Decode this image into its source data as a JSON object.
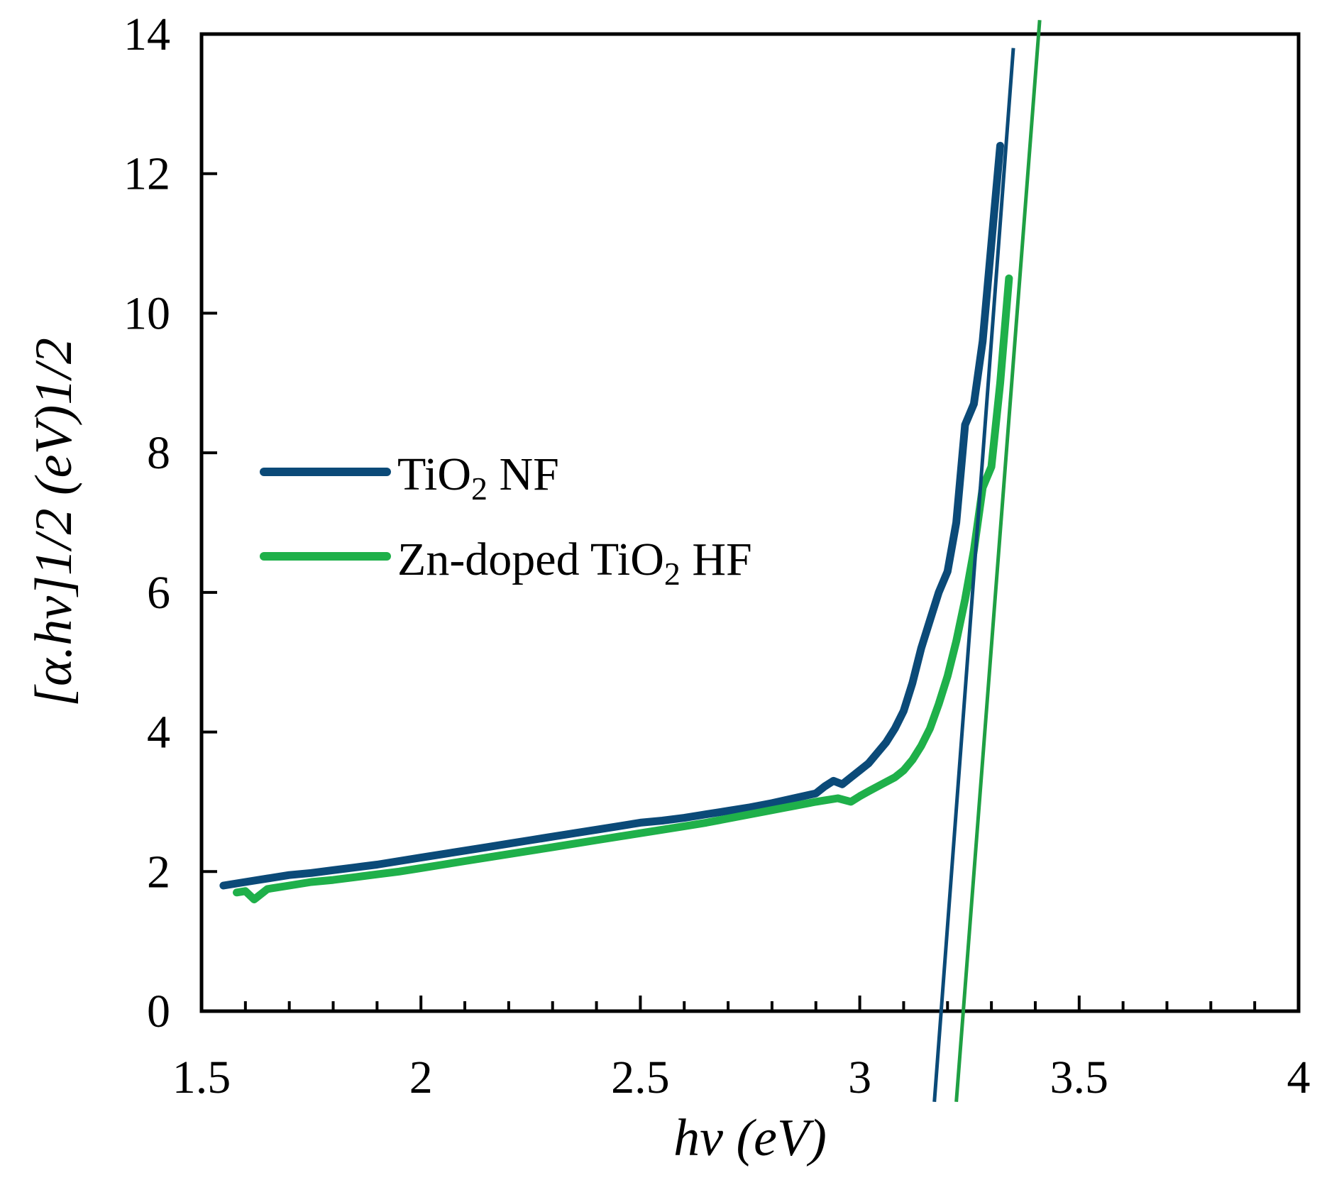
{
  "chart_data": {
    "type": "line",
    "title": "",
    "xlabel": "hv (eV)",
    "ylabel": "[α.hv]1/2 (eV)1/2",
    "xlim": [
      1.5,
      4
    ],
    "ylim": [
      0,
      14
    ],
    "x_ticks": [
      "1.5",
      "2",
      "2.5",
      "3",
      "3.5",
      "4"
    ],
    "y_ticks": [
      "0",
      "2",
      "4",
      "6",
      "8",
      "10",
      "12",
      "14"
    ],
    "grid": false,
    "legend_position": "center-left",
    "series": [
      {
        "name": "TiO2 NF",
        "label_main": "TiO",
        "label_sub": "2",
        "label_tail": " NF",
        "color": "#0b4a78",
        "x": [
          1.55,
          1.6,
          1.65,
          1.7,
          1.75,
          1.8,
          1.85,
          1.9,
          1.95,
          2.0,
          2.05,
          2.1,
          2.15,
          2.2,
          2.25,
          2.3,
          2.35,
          2.4,
          2.45,
          2.5,
          2.55,
          2.6,
          2.65,
          2.7,
          2.75,
          2.8,
          2.85,
          2.9,
          2.92,
          2.94,
          2.96,
          2.98,
          3.0,
          3.02,
          3.04,
          3.06,
          3.08,
          3.1,
          3.12,
          3.14,
          3.16,
          3.18,
          3.2,
          3.22,
          3.24,
          3.26,
          3.28,
          3.3,
          3.32
        ],
        "y": [
          1.8,
          1.85,
          1.9,
          1.95,
          1.98,
          2.02,
          2.06,
          2.1,
          2.15,
          2.2,
          2.25,
          2.3,
          2.35,
          2.4,
          2.45,
          2.5,
          2.55,
          2.6,
          2.65,
          2.7,
          2.73,
          2.77,
          2.82,
          2.87,
          2.92,
          2.98,
          3.05,
          3.12,
          3.22,
          3.3,
          3.25,
          3.35,
          3.45,
          3.55,
          3.7,
          3.85,
          4.05,
          4.3,
          4.7,
          5.2,
          5.6,
          6.0,
          6.3,
          7.0,
          8.4,
          8.7,
          9.6,
          11.0,
          12.4
        ]
      },
      {
        "name": "Zn-doped TiO2 HF",
        "label_main": "Zn-doped TiO",
        "label_sub": "2",
        "label_tail": " HF",
        "color": "#1fb04a",
        "x": [
          1.58,
          1.6,
          1.62,
          1.65,
          1.7,
          1.75,
          1.8,
          1.85,
          1.9,
          1.95,
          2.0,
          2.05,
          2.1,
          2.15,
          2.2,
          2.25,
          2.3,
          2.35,
          2.4,
          2.45,
          2.5,
          2.55,
          2.6,
          2.65,
          2.7,
          2.75,
          2.8,
          2.85,
          2.9,
          2.95,
          2.98,
          3.0,
          3.02,
          3.05,
          3.08,
          3.1,
          3.12,
          3.14,
          3.16,
          3.18,
          3.2,
          3.22,
          3.24,
          3.26,
          3.28,
          3.3,
          3.32,
          3.34
        ],
        "y": [
          1.7,
          1.72,
          1.6,
          1.75,
          1.8,
          1.85,
          1.88,
          1.92,
          1.96,
          2.0,
          2.05,
          2.1,
          2.15,
          2.2,
          2.25,
          2.3,
          2.35,
          2.4,
          2.45,
          2.5,
          2.55,
          2.6,
          2.65,
          2.7,
          2.76,
          2.82,
          2.88,
          2.94,
          3.0,
          3.05,
          3.0,
          3.08,
          3.15,
          3.25,
          3.35,
          3.45,
          3.6,
          3.8,
          4.05,
          4.4,
          4.8,
          5.3,
          5.9,
          6.6,
          7.5,
          7.8,
          9.0,
          10.5
        ]
      }
    ],
    "fit_lines": [
      {
        "name": "TiO2 NF tangent",
        "color": "#0b4a78",
        "x": [
          3.17,
          3.35
        ],
        "y": [
          -1.3,
          13.8
        ]
      },
      {
        "name": "Zn-doped TiO2 HF tangent",
        "color": "#1fa043",
        "x": [
          3.22,
          3.41
        ],
        "y": [
          -1.3,
          14.2
        ]
      }
    ]
  }
}
